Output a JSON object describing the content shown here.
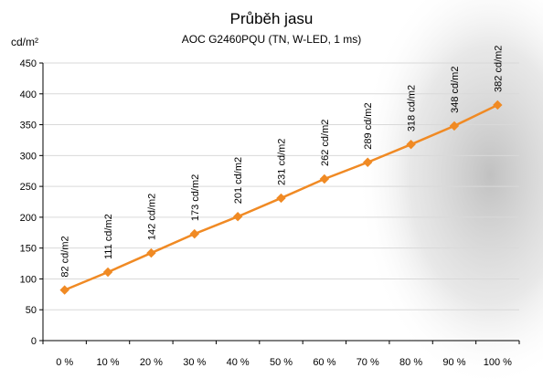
{
  "chart_data": {
    "type": "line",
    "title": "Průběh jasu",
    "subtitle": "AOC G2460PQU  (TN, W-LED, 1 ms)",
    "ylabel": "cd/m²",
    "xlabel": "",
    "categories": [
      "0 %",
      "10 %",
      "20 %",
      "30 %",
      "40 %",
      "50 %",
      "60 %",
      "70 %",
      "80 %",
      "90 %",
      "100 %"
    ],
    "ylim": [
      0,
      450
    ],
    "yticks": [
      0,
      50,
      100,
      150,
      200,
      250,
      300,
      350,
      400,
      450
    ],
    "grid": true,
    "series": [
      {
        "values": [
          82,
          111,
          142,
          173,
          201,
          231,
          262,
          289,
          318,
          348,
          382
        ],
        "color": "#f08a24",
        "marker": "diamond"
      }
    ],
    "data_labels": [
      "82 cd/m2",
      "111 cd/m2",
      "142 cd/m2",
      "173 cd/m2",
      "201 cd/m2",
      "231 cd/m2",
      "262 cd/m2",
      "289 cd/m2",
      "318 cd/m2",
      "348 cd/m2",
      "382 cd/m2"
    ]
  },
  "colors": {
    "line": "#f08a24",
    "grid": "#d9d9d9",
    "axis": "#000000"
  }
}
